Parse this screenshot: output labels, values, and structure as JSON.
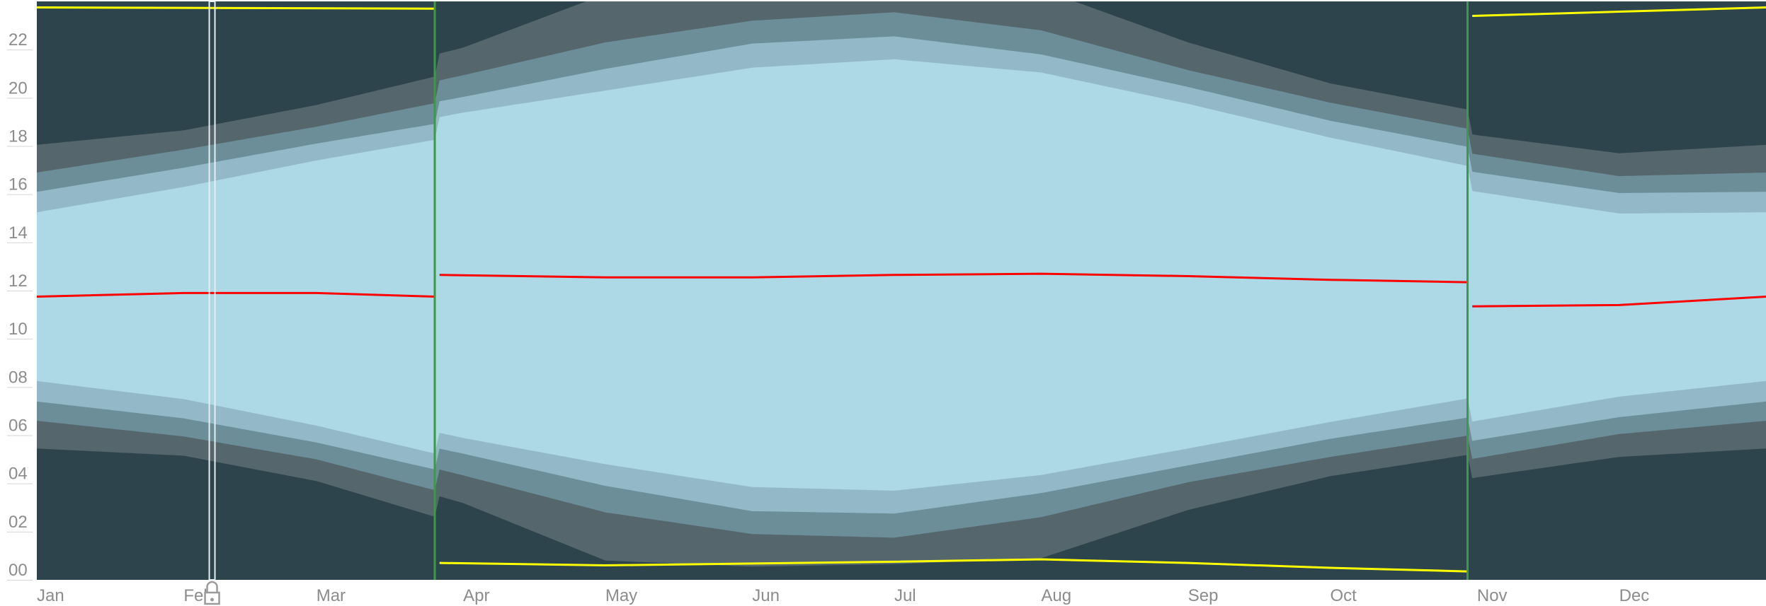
{
  "chart_data": {
    "type": "heatmap",
    "title": "",
    "xlabel": "",
    "ylabel": "",
    "x_tick_labels": [
      "Jan",
      "Feb",
      "Mar",
      "Apr",
      "May",
      "Jun",
      "Jul",
      "Aug",
      "Sep",
      "Oct",
      "Nov",
      "Dec"
    ],
    "y_tick_labels": [
      "00",
      "02",
      "04",
      "06",
      "08",
      "10",
      "12",
      "14",
      "16",
      "18",
      "20",
      "22"
    ],
    "xlim_days": [
      0,
      365
    ],
    "ylim_hours": [
      0,
      24
    ],
    "grid": false,
    "legend": "none",
    "bands": [
      {
        "name": "night",
        "color": "#2d444d"
      },
      {
        "name": "astronomical twilight",
        "color": "#56666d"
      },
      {
        "name": "nautical twilight",
        "color": "#6c8e99"
      },
      {
        "name": "civil twilight",
        "color": "#93b9c9"
      },
      {
        "name": "daylight",
        "color": "#add8e6"
      }
    ],
    "day_length_hours": {
      "day_of_year": [
        0,
        31,
        59,
        90,
        120,
        151,
        181,
        212,
        243,
        273,
        304,
        334,
        365
      ],
      "daylight": [
        7.0,
        8.8,
        11.0,
        13.5,
        15.5,
        17.4,
        17.9,
        16.7,
        14.3,
        11.8,
        9.5,
        7.6,
        7.0
      ],
      "civil": [
        8.7,
        10.4,
        12.4,
        14.8,
        17.3,
        19.4,
        19.8,
        18.2,
        15.7,
        13.2,
        11.1,
        9.3,
        8.7
      ],
      "nautical": [
        10.3,
        11.9,
        13.8,
        16.6,
        19.5,
        21.3,
        21.8,
        20.2,
        17.1,
        14.7,
        12.6,
        10.7,
        10.3
      ],
      "astronomical": [
        12.6,
        13.5,
        15.6,
        18.9,
        23.5,
        24.0,
        24.0,
        23.6,
        19.4,
        16.3,
        14.2,
        12.6,
        12.6
      ]
    },
    "solar_noon_hours": {
      "day_of_year": [
        0,
        31,
        59,
        84,
        85,
        120,
        151,
        181,
        212,
        243,
        273,
        302,
        303,
        334,
        365
      ],
      "values": [
        11.75,
        11.9,
        11.9,
        11.75,
        12.65,
        12.55,
        12.55,
        12.65,
        12.7,
        12.6,
        12.45,
        12.35,
        11.35,
        11.4,
        11.75
      ]
    },
    "solar_midnight_hours": {
      "day_of_year": [
        0,
        84,
        85,
        120,
        181,
        212,
        243,
        273,
        302,
        303,
        365
      ],
      "values": [
        23.75,
        23.7,
        0.7,
        0.6,
        0.75,
        0.85,
        0.7,
        0.5,
        0.35,
        23.4,
        23.75
      ]
    },
    "dst_transitions_day": [
      84,
      302
    ],
    "marker": {
      "day_of_year": 37,
      "icon": "lock-icon"
    },
    "colors": {
      "noon_line": "#ff0000",
      "midnight_line": "#ffff00",
      "dst_line": "#3c9a46",
      "axis_text": "#8c8c8c",
      "marker_line": "#e8eef1"
    }
  }
}
